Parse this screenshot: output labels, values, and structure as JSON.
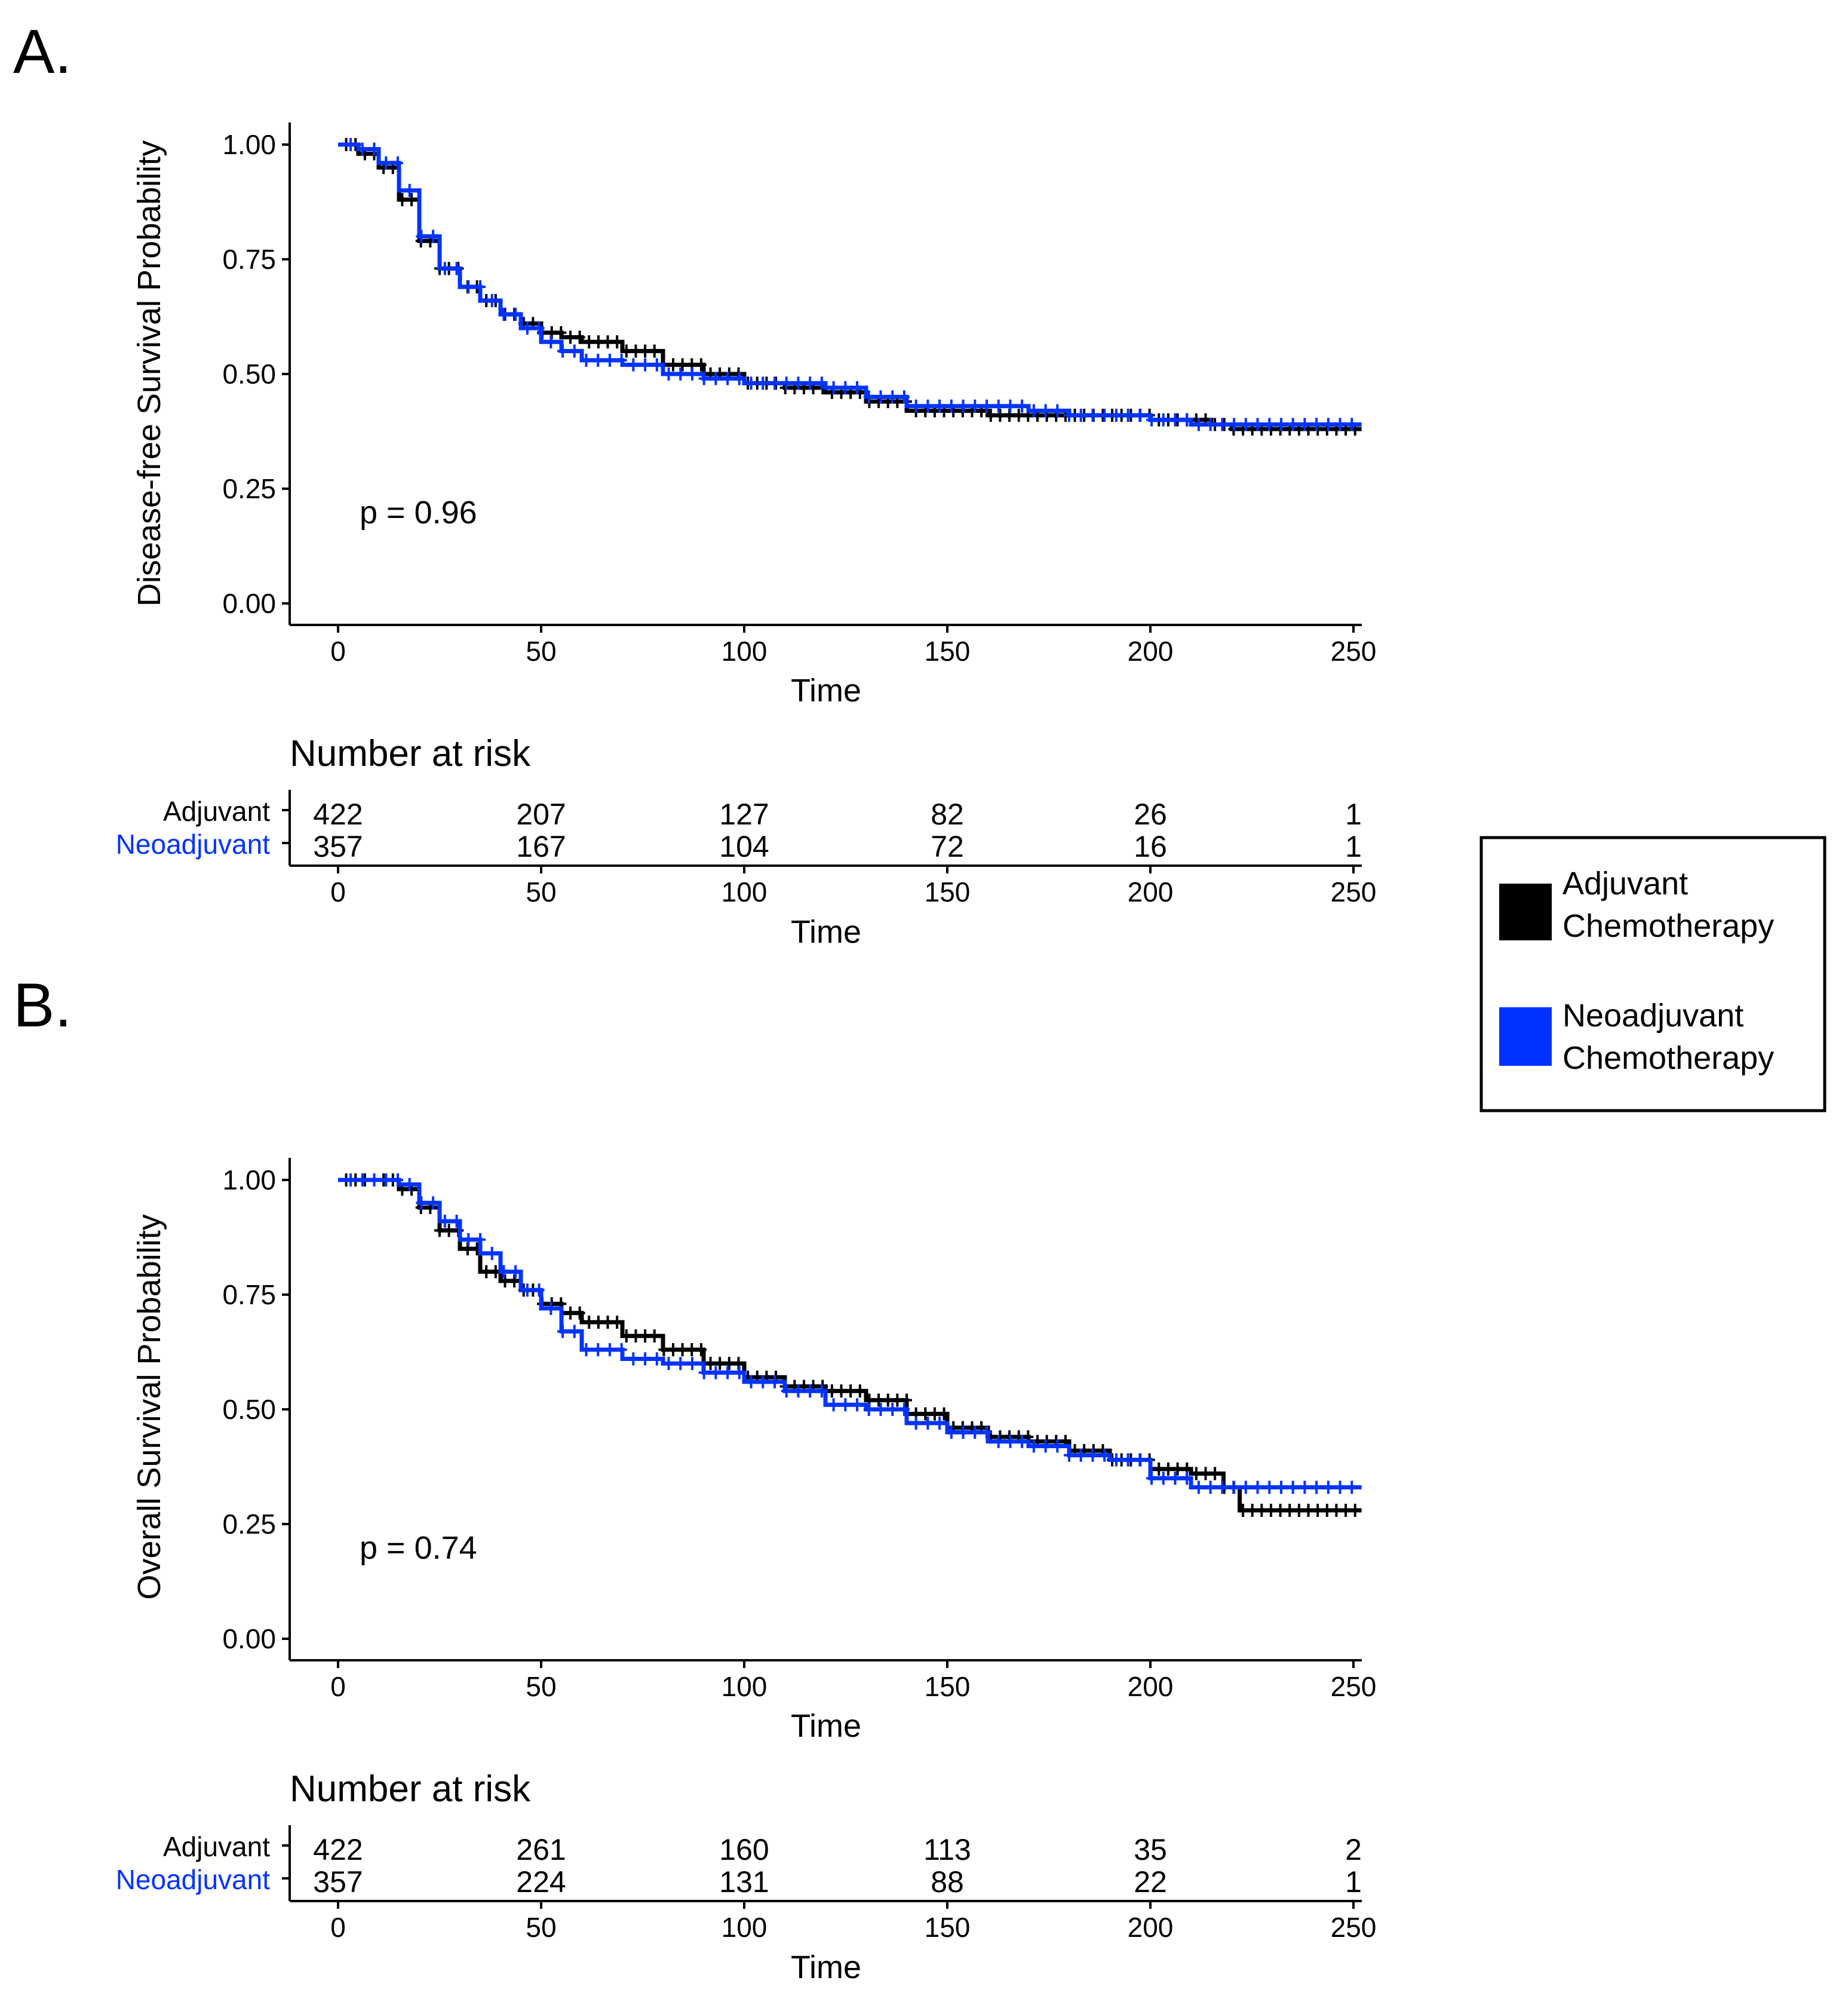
{
  "colors": {
    "adjuvant": "#000000",
    "neoadjuvant": "#0033ff",
    "axis": "#000000"
  },
  "legend": {
    "items": [
      {
        "line1": "Adjuvant",
        "line2": "Chemotherapy",
        "color": "#000000"
      },
      {
        "line1": "Neoadjuvant",
        "line2": "Chemotherapy",
        "color": "#0033ff"
      }
    ]
  },
  "chart_data": [
    {
      "type": "line",
      "panel_label": "A.",
      "title": "",
      "xlabel": "Time",
      "ylabel": "Disease-free Survival Probability",
      "xlim": [
        0,
        250
      ],
      "ylim": [
        0,
        1
      ],
      "x_ticks": [
        0,
        50,
        100,
        150,
        200,
        250
      ],
      "y_ticks": [
        "0.00",
        "0.25",
        "0.50",
        "0.75",
        "1.00"
      ],
      "annotation": "p = 0.96",
      "series": [
        {
          "name": "Adjuvant Chemotherapy",
          "color": "#000000",
          "points": [
            [
              0,
              1.0
            ],
            [
              5,
              0.98
            ],
            [
              10,
              0.95
            ],
            [
              15,
              0.88
            ],
            [
              20,
              0.79
            ],
            [
              25,
              0.73
            ],
            [
              30,
              0.69
            ],
            [
              35,
              0.66
            ],
            [
              40,
              0.63
            ],
            [
              45,
              0.61
            ],
            [
              50,
              0.59
            ],
            [
              55,
              0.58
            ],
            [
              60,
              0.57
            ],
            [
              70,
              0.55
            ],
            [
              80,
              0.52
            ],
            [
              90,
              0.5
            ],
            [
              100,
              0.48
            ],
            [
              110,
              0.47
            ],
            [
              120,
              0.46
            ],
            [
              130,
              0.44
            ],
            [
              140,
              0.42
            ],
            [
              150,
              0.42
            ],
            [
              160,
              0.41
            ],
            [
              170,
              0.41
            ],
            [
              180,
              0.41
            ],
            [
              190,
              0.41
            ],
            [
              200,
              0.4
            ],
            [
              210,
              0.4
            ],
            [
              215,
              0.39
            ],
            [
              220,
              0.38
            ],
            [
              230,
              0.38
            ],
            [
              240,
              0.38
            ],
            [
              252,
              0.38
            ]
          ]
        },
        {
          "name": "Neoadjuvant Chemotherapy",
          "color": "#0033ff",
          "points": [
            [
              0,
              1.0
            ],
            [
              5,
              0.99
            ],
            [
              10,
              0.96
            ],
            [
              15,
              0.9
            ],
            [
              20,
              0.8
            ],
            [
              25,
              0.73
            ],
            [
              30,
              0.69
            ],
            [
              35,
              0.66
            ],
            [
              40,
              0.63
            ],
            [
              45,
              0.6
            ],
            [
              50,
              0.57
            ],
            [
              55,
              0.55
            ],
            [
              60,
              0.53
            ],
            [
              70,
              0.52
            ],
            [
              80,
              0.5
            ],
            [
              90,
              0.49
            ],
            [
              100,
              0.48
            ],
            [
              110,
              0.48
            ],
            [
              120,
              0.47
            ],
            [
              130,
              0.45
            ],
            [
              140,
              0.43
            ],
            [
              150,
              0.43
            ],
            [
              160,
              0.43
            ],
            [
              170,
              0.42
            ],
            [
              180,
              0.41
            ],
            [
              190,
              0.41
            ],
            [
              200,
              0.4
            ],
            [
              210,
              0.39
            ],
            [
              220,
              0.39
            ],
            [
              230,
              0.39
            ],
            [
              240,
              0.39
            ],
            [
              252,
              0.39
            ]
          ]
        }
      ],
      "risk_table": {
        "title": "Number at risk",
        "xlabel": "Time",
        "times": [
          0,
          50,
          100,
          150,
          200,
          250
        ],
        "rows": [
          {
            "label": "Adjuvant",
            "color": "#000000",
            "values": [
              422,
              207,
              127,
              82,
              26,
              1
            ]
          },
          {
            "label": "Neoadjuvant",
            "color": "#0033ff",
            "values": [
              357,
              167,
              104,
              72,
              16,
              1
            ]
          }
        ]
      }
    },
    {
      "type": "line",
      "panel_label": "B.",
      "title": "",
      "xlabel": "Time",
      "ylabel": "Overall Survival Probability",
      "xlim": [
        0,
        250
      ],
      "ylim": [
        0,
        1
      ],
      "x_ticks": [
        0,
        50,
        100,
        150,
        200,
        250
      ],
      "y_ticks": [
        "0.00",
        "0.25",
        "0.50",
        "0.75",
        "1.00"
      ],
      "annotation": "p = 0.74",
      "series": [
        {
          "name": "Adjuvant Chemotherapy",
          "color": "#000000",
          "points": [
            [
              0,
              1.0
            ],
            [
              10,
              1.0
            ],
            [
              15,
              0.98
            ],
            [
              20,
              0.94
            ],
            [
              25,
              0.89
            ],
            [
              30,
              0.85
            ],
            [
              35,
              0.8
            ],
            [
              40,
              0.78
            ],
            [
              45,
              0.76
            ],
            [
              50,
              0.73
            ],
            [
              55,
              0.71
            ],
            [
              60,
              0.69
            ],
            [
              70,
              0.66
            ],
            [
              80,
              0.63
            ],
            [
              90,
              0.6
            ],
            [
              100,
              0.57
            ],
            [
              110,
              0.55
            ],
            [
              120,
              0.54
            ],
            [
              130,
              0.52
            ],
            [
              140,
              0.49
            ],
            [
              150,
              0.46
            ],
            [
              160,
              0.44
            ],
            [
              170,
              0.43
            ],
            [
              180,
              0.41
            ],
            [
              190,
              0.39
            ],
            [
              200,
              0.37
            ],
            [
              210,
              0.36
            ],
            [
              218,
              0.33
            ],
            [
              222,
              0.28
            ],
            [
              230,
              0.28
            ],
            [
              240,
              0.28
            ],
            [
              252,
              0.28
            ]
          ]
        },
        {
          "name": "Neoadjuvant Chemotherapy",
          "color": "#0033ff",
          "points": [
            [
              0,
              1.0
            ],
            [
              10,
              1.0
            ],
            [
              15,
              0.99
            ],
            [
              20,
              0.95
            ],
            [
              25,
              0.91
            ],
            [
              30,
              0.87
            ],
            [
              35,
              0.84
            ],
            [
              40,
              0.8
            ],
            [
              45,
              0.76
            ],
            [
              50,
              0.72
            ],
            [
              55,
              0.67
            ],
            [
              60,
              0.63
            ],
            [
              70,
              0.61
            ],
            [
              80,
              0.6
            ],
            [
              90,
              0.58
            ],
            [
              100,
              0.56
            ],
            [
              110,
              0.54
            ],
            [
              120,
              0.51
            ],
            [
              130,
              0.5
            ],
            [
              140,
              0.47
            ],
            [
              150,
              0.45
            ],
            [
              160,
              0.43
            ],
            [
              170,
              0.42
            ],
            [
              180,
              0.4
            ],
            [
              190,
              0.39
            ],
            [
              200,
              0.35
            ],
            [
              210,
              0.33
            ],
            [
              220,
              0.33
            ],
            [
              230,
              0.33
            ],
            [
              240,
              0.33
            ],
            [
              252,
              0.33
            ]
          ]
        }
      ],
      "risk_table": {
        "title": "Number at risk",
        "xlabel": "Time",
        "times": [
          0,
          50,
          100,
          150,
          200,
          250
        ],
        "rows": [
          {
            "label": "Adjuvant",
            "color": "#000000",
            "values": [
              422,
              261,
              160,
              113,
              35,
              2
            ]
          },
          {
            "label": "Neoadjuvant",
            "color": "#0033ff",
            "values": [
              357,
              224,
              131,
              88,
              22,
              1
            ]
          }
        ]
      }
    }
  ]
}
